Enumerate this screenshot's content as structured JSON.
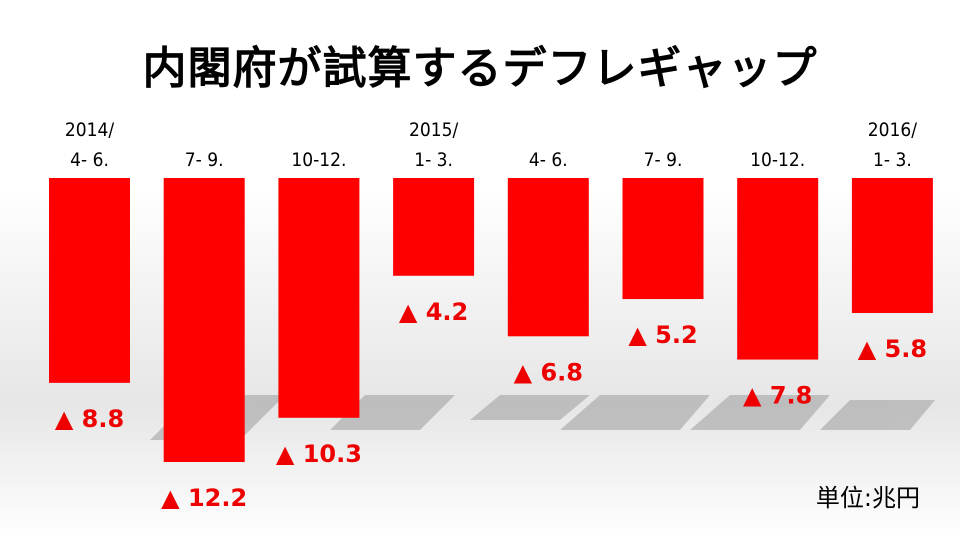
{
  "title": "内閣府が試算するデフレギャップ",
  "unit_label": "単位:兆円",
  "colors": {
    "bar": "#ff0000",
    "value_text": "#ee0000"
  },
  "chart_data": {
    "type": "bar",
    "title": "内閣府が試算するデフレギャップ",
    "categories": [
      [
        "2014/",
        "4- 6."
      ],
      [
        "7- 9."
      ],
      [
        "10-12."
      ],
      [
        "2015/",
        "1- 3."
      ],
      [
        "4- 6."
      ],
      [
        "7- 9."
      ],
      [
        "10-12."
      ],
      [
        "2016/",
        "1- 3."
      ]
    ],
    "values": [
      -8.8,
      -12.2,
      -10.3,
      -4.2,
      -6.8,
      -5.2,
      -7.8,
      -5.8
    ],
    "value_labels": [
      "▲ 8.8",
      "▲ 12.2",
      "▲ 10.3",
      "▲ 4.2",
      "▲ 6.8",
      "▲ 5.2",
      "▲ 7.8",
      "▲ 5.8"
    ],
    "ylim": [
      -12.2,
      0
    ],
    "unit": "兆円",
    "grid": false
  }
}
